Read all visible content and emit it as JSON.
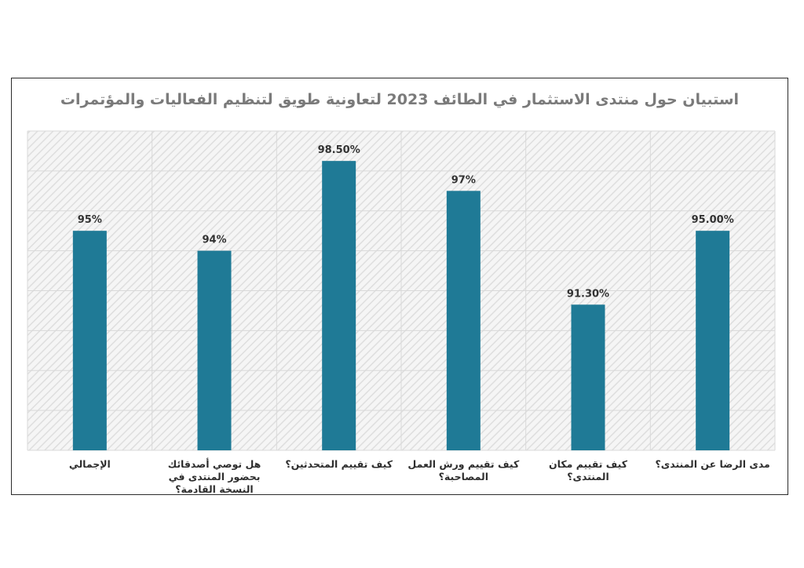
{
  "chart_data": {
    "type": "bar",
    "title": "استبيان حول منتدى الاستثمار في الطائف 2023 لتعاونية طويق لتنظيم الفعاليات والمؤتمرات",
    "categories": [
      "الإجمالي",
      "هل توصي أصدقائك بحضور المنتدى في النسخة القادمة؟",
      "كيف تقييم المتحدثين؟",
      "كيف تقييم ورش العمل المصاحبة؟",
      "كيف تقييم مكان المنتدى؟",
      "مدى الرضا عن المنتدى؟"
    ],
    "values": [
      95,
      94,
      98.5,
      97,
      91.3,
      95
    ],
    "value_labels": [
      "95%",
      "94%",
      "98.50%",
      "97%",
      "91.30%",
      "95.00%"
    ],
    "ylim": [
      84,
      100
    ],
    "grid": true,
    "colors": {
      "bar": "#1f7a96",
      "plot_background": "#f3f3f3",
      "hatch": "#dcdcdc"
    }
  }
}
